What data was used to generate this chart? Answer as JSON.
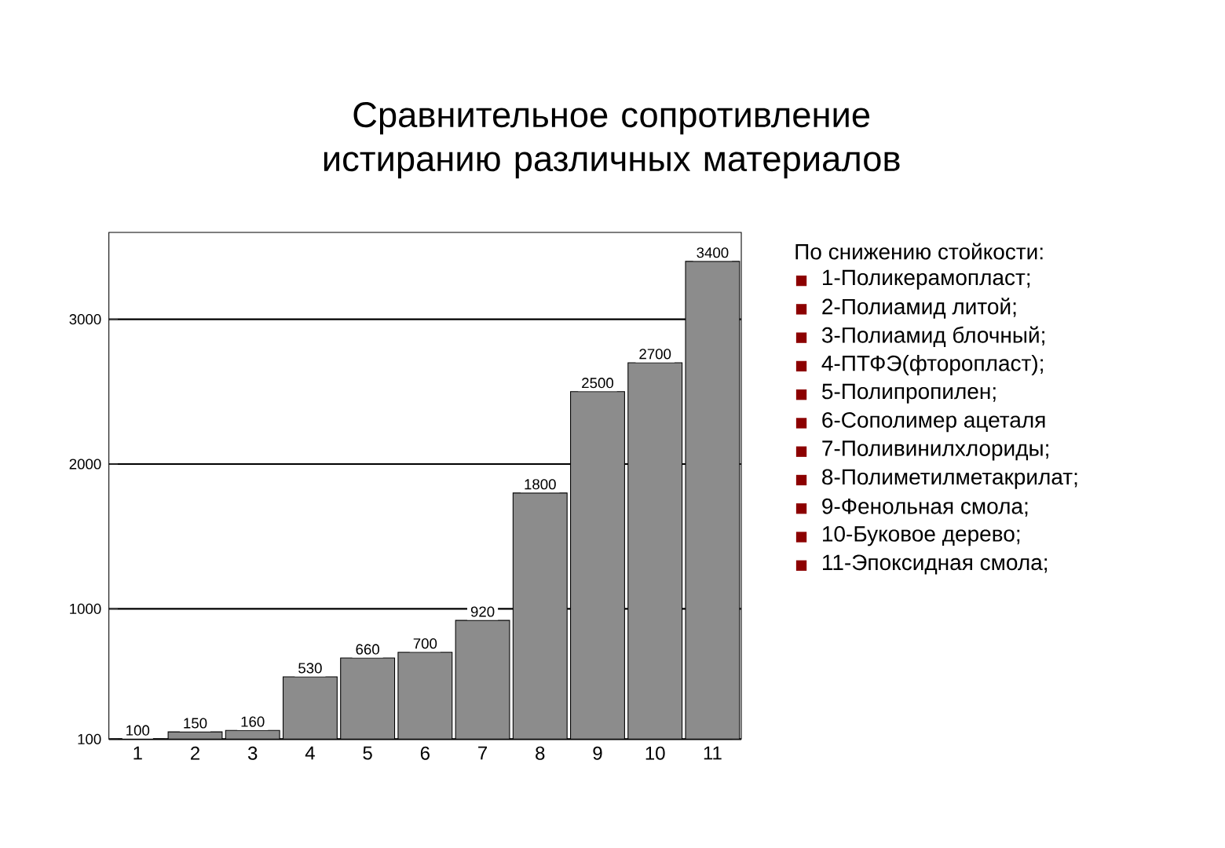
{
  "chart_data": {
    "type": "bar",
    "title": "Сравнительное сопротивление истиранию различных материалов",
    "categories": [
      "1",
      "2",
      "3",
      "4",
      "5",
      "6",
      "7",
      "8",
      "9",
      "10",
      "11"
    ],
    "values": [
      100,
      150,
      160,
      530,
      660,
      700,
      920,
      1800,
      2500,
      2700,
      3400
    ],
    "color": "#8c8c8c",
    "data_labels": true,
    "grid": "y",
    "ylim": [
      100,
      3600
    ],
    "yticks": [
      100,
      1000,
      2000,
      3000
    ],
    "annotations": [
      "По снижению стойкости:",
      "1-Поликерамопласт;",
      "2-Полиамид литой;",
      "3-Полиамид блочный;",
      "4-ПТФЭ(фторопласт);",
      "5-Полипропилен;",
      "6-Сополимер ацеталя",
      "7-Поливинилхлориды;",
      "8-Полиметилметакрилат;",
      "9-Фенольная смола;",
      "10-Буковое дерево;",
      "11-Эпоксидная смола;"
    ]
  }
}
